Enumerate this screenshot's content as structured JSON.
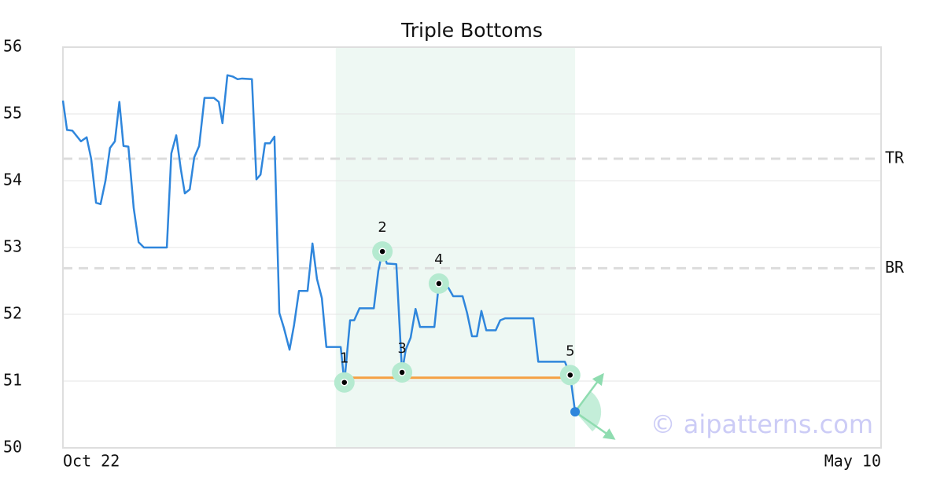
{
  "chart_data": {
    "type": "line",
    "title": "Triple Bottoms",
    "x": [
      0,
      1,
      2.3,
      4.4,
      5.8,
      6.9,
      8.1,
      9.2,
      10.4,
      11.5,
      12.7,
      13.8,
      14.8,
      16,
      17.3,
      18.5,
      19.8,
      25.4,
      26.5,
      27.7,
      28.8,
      29.8,
      31,
      32.1,
      33.3,
      34.6,
      36.9,
      38.1,
      39,
      40.2,
      41.5,
      42.7,
      43.8,
      46.2,
      47.3,
      48.3,
      49.4,
      50.6,
      51.7,
      52.9,
      54,
      55.4,
      56.5,
      57.7,
      59.8,
      61,
      62.1,
      63.3,
      64.4,
      67.9,
      68.8,
      70.2,
      71.2,
      72.5,
      76,
      77.1,
      78.1,
      79.2,
      81.5,
      82.9,
      83.8,
      85,
      86.2,
      87.3,
      90.8,
      91.9,
      93.1,
      94.2,
      95.4,
      97.7,
      98.8,
      100,
      101.2,
      102.3,
      103.5,
      105.8,
      106.9,
      108.1,
      115,
      116.2,
      122.7,
      124,
      125.2
    ],
    "values": [
      55.2,
      54.76,
      54.75,
      54.59,
      54.65,
      54.33,
      53.67,
      53.65,
      54.0,
      54.49,
      54.59,
      55.18,
      54.52,
      54.51,
      53.59,
      53.08,
      53.0,
      53.0,
      54.41,
      54.68,
      54.18,
      53.81,
      53.87,
      54.35,
      54.52,
      55.24,
      55.24,
      55.18,
      54.86,
      55.58,
      55.56,
      55.52,
      55.53,
      55.52,
      54.02,
      54.09,
      54.56,
      54.56,
      54.66,
      52.02,
      51.8,
      51.47,
      51.84,
      52.35,
      52.35,
      53.06,
      52.53,
      52.24,
      51.51,
      51.51,
      50.98,
      51.91,
      51.91,
      52.09,
      52.09,
      52.65,
      52.94,
      52.76,
      52.75,
      51.13,
      51.47,
      51.65,
      52.08,
      51.81,
      51.81,
      52.46,
      52.4,
      52.4,
      52.27,
      52.27,
      52.02,
      51.67,
      51.67,
      52.05,
      51.76,
      51.76,
      51.91,
      51.94,
      51.94,
      51.29,
      51.29,
      51.09,
      50.54
    ],
    "color": "#2f86dc",
    "xlim": [
      0,
      200
    ],
    "xticks": [
      {
        "value": 0,
        "label": "Oct 22"
      },
      {
        "value": 200,
        "label": "May 10"
      }
    ],
    "ylim": [
      50,
      56
    ],
    "yticks": [
      50,
      51,
      52,
      53,
      54,
      55,
      56
    ],
    "grid": true,
    "pattern": {
      "region": [
        66.7,
        125.2
      ],
      "region_color": "#eef8f3",
      "support": {
        "value": 51.05,
        "x": [
          68.8,
          124
        ],
        "color": "#f5a043"
      },
      "levels": [
        {
          "label": "TR",
          "value": 54.33
        },
        {
          "label": "BR",
          "value": 52.69
        }
      ],
      "pivots": [
        {
          "label": "1",
          "x": 68.8,
          "value": 50.98
        },
        {
          "label": "2",
          "x": 78.1,
          "value": 52.94
        },
        {
          "label": "3",
          "x": 82.9,
          "value": 51.13
        },
        {
          "label": "4",
          "x": 91.9,
          "value": 52.46
        },
        {
          "label": "5",
          "x": 124,
          "value": 51.09
        }
      ],
      "pivot_color": "#b5ead0"
    },
    "watermark": "© aipatterns.com"
  }
}
